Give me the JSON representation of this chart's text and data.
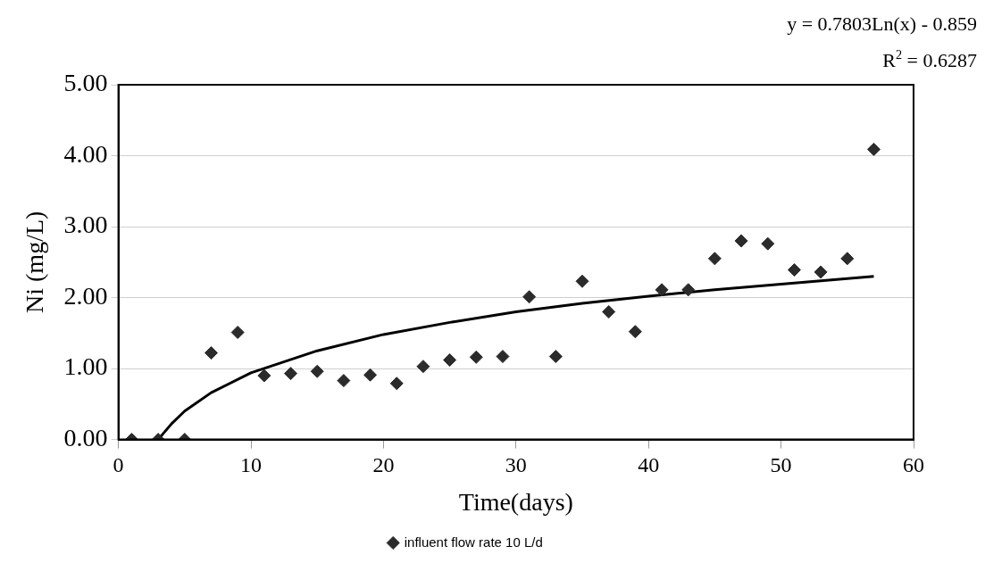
{
  "chart_data": {
    "type": "scatter",
    "xlabel": "Time(days)",
    "ylabel": "Ni (mg/L)",
    "annotations": [
      "y = 0.7803Ln(x) - 0.859",
      "R$^{2}$ = 0.6287"
    ],
    "xlim": [
      0,
      60
    ],
    "xticks": [
      0,
      10,
      20,
      30,
      40,
      50,
      60
    ],
    "ylim": [
      0,
      5
    ],
    "yticks": [
      {
        "value": 0,
        "label": "0.00"
      },
      {
        "value": 1,
        "label": "1.00"
      },
      {
        "value": 2,
        "label": "2.00"
      },
      {
        "value": 3,
        "label": "3.00"
      },
      {
        "value": 4,
        "label": "4.00"
      },
      {
        "value": 5,
        "label": "5.00"
      }
    ],
    "grid": "y",
    "legend": "bottom",
    "series": [
      {
        "name": "influent flow rate 10 L/d",
        "marker": "diamond",
        "color": "#2b2b2b",
        "x": [
          1,
          3,
          5,
          7,
          9,
          11,
          13,
          15,
          17,
          19,
          21,
          23,
          25,
          27,
          29,
          31,
          33,
          35,
          37,
          39,
          41,
          43,
          45,
          47,
          49,
          51,
          53,
          55,
          57
        ],
        "values": [
          0,
          0,
          0,
          1.22,
          1.51,
          0.9,
          0.93,
          0.96,
          0.83,
          0.91,
          0.79,
          1.03,
          1.12,
          1.16,
          1.17,
          2.01,
          1.17,
          2.23,
          1.8,
          1.52,
          2.11,
          2.11,
          2.55,
          2.8,
          2.76,
          2.39,
          2.36,
          2.55,
          4.09
        ]
      },
      {
        "type": "line",
        "marker": "none",
        "line_style": "solid",
        "color": "#000000",
        "x": [
          3,
          4,
          5,
          7,
          10,
          15,
          20,
          25,
          30,
          35,
          40,
          45,
          50,
          57
        ],
        "values": [
          0,
          0.22,
          0.4,
          0.66,
          0.94,
          1.25,
          1.48,
          1.65,
          1.8,
          1.92,
          2.02,
          2.11,
          2.19,
          2.3
        ]
      }
    ]
  }
}
